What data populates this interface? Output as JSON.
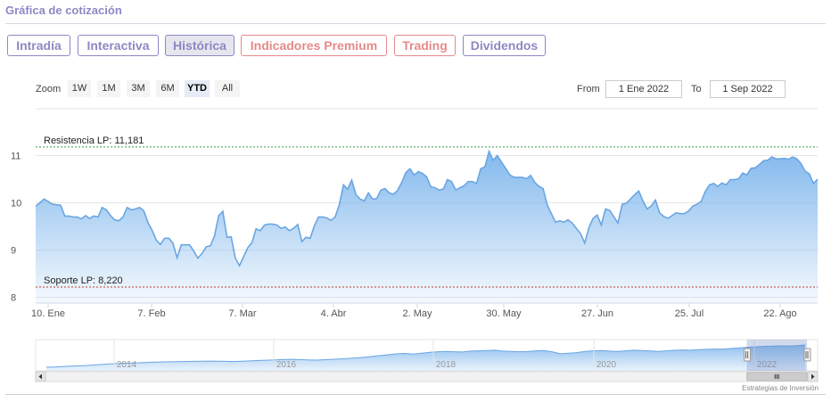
{
  "header": {
    "title": "Gráfica de cotización"
  },
  "tabs": [
    {
      "label": "Intradía",
      "active": false,
      "color": "#8c88c4"
    },
    {
      "label": "Interactiva",
      "active": false,
      "color": "#8c88c4"
    },
    {
      "label": "Histórica",
      "active": true,
      "color": "#8c88c4"
    },
    {
      "label": "Indicadores Premium",
      "active": false,
      "color": "#e58a8a"
    },
    {
      "label": "Trading",
      "active": false,
      "color": "#e58a8a"
    },
    {
      "label": "Dividendos",
      "active": false,
      "color": "#8c88c4"
    }
  ],
  "range_selector": {
    "zoom_label": "Zoom",
    "buttons": [
      "1W",
      "1M",
      "3M",
      "6M",
      "YTD",
      "All"
    ],
    "selected": "YTD",
    "from_label": "From",
    "from_value": "1 Ene 2022",
    "to_label": "To",
    "to_value": "1 Sep 2022"
  },
  "chart_data": {
    "type": "area",
    "series": [
      {
        "values": [
          9.93,
          10.0,
          10.08,
          10.03,
          9.97,
          9.96,
          9.95,
          9.72,
          9.72,
          9.7,
          9.7,
          9.66,
          9.73,
          9.67,
          9.72,
          9.7,
          9.9,
          9.85,
          9.73,
          9.64,
          9.62,
          9.7,
          9.9,
          9.85,
          9.87,
          9.9,
          9.83,
          9.58,
          9.42,
          9.21,
          9.12,
          9.25,
          9.25,
          9.15,
          8.84,
          9.11,
          9.11,
          9.11,
          8.98,
          8.83,
          8.93,
          9.07,
          9.09,
          9.3,
          9.73,
          9.82,
          9.27,
          9.28,
          8.83,
          8.67,
          8.86,
          9.05,
          9.16,
          9.45,
          9.41,
          9.53,
          9.55,
          9.55,
          9.53,
          9.46,
          9.49,
          9.41,
          9.46,
          9.54,
          9.18,
          9.27,
          9.25,
          9.51,
          9.7,
          9.7,
          9.68,
          9.63,
          9.7,
          9.96,
          10.38,
          10.29,
          10.48,
          10.17,
          10.08,
          10.04,
          10.21,
          10.08,
          10.09,
          10.27,
          10.3,
          10.21,
          10.18,
          10.26,
          10.43,
          10.64,
          10.72,
          10.59,
          10.66,
          10.62,
          10.55,
          10.34,
          10.32,
          10.27,
          10.29,
          10.49,
          10.45,
          10.27,
          10.32,
          10.36,
          10.45,
          10.45,
          10.41,
          10.72,
          10.76,
          11.09,
          10.9,
          11.0,
          10.86,
          10.73,
          10.59,
          10.54,
          10.54,
          10.54,
          10.51,
          10.58,
          10.43,
          10.35,
          10.3,
          9.95,
          9.77,
          9.59,
          9.62,
          9.59,
          9.64,
          9.57,
          9.46,
          9.35,
          9.15,
          9.47,
          9.67,
          9.74,
          9.53,
          9.87,
          9.84,
          9.71,
          9.57,
          9.97,
          9.99,
          10.08,
          10.17,
          10.25,
          10.04,
          9.87,
          9.93,
          10.06,
          9.79,
          9.71,
          9.67,
          9.73,
          9.79,
          9.77,
          9.77,
          9.83,
          9.93,
          9.97,
          10.03,
          10.24,
          10.38,
          10.41,
          10.35,
          10.42,
          10.38,
          10.49,
          10.49,
          10.51,
          10.63,
          10.59,
          10.73,
          10.74,
          10.81,
          10.89,
          10.9,
          10.97,
          10.93,
          10.93,
          10.94,
          10.92,
          10.97,
          10.93,
          10.83,
          10.67,
          10.61,
          10.41,
          10.5
        ]
      }
    ],
    "x_tick_labels": [
      "10. Ene",
      "7. Feb",
      "7. Mar",
      "4. Abr",
      "2. May",
      "30. May",
      "27. Jun",
      "25. Jul",
      "22. Ago"
    ],
    "y_tick_labels": [
      "8",
      "9",
      "10",
      "11"
    ],
    "ylim": [
      7.88,
      11.65
    ],
    "lines": [
      {
        "label": "Resistencia LP: 11,181",
        "value": 11.181,
        "color": "#3a9a4a"
      },
      {
        "label": "Soporte LP: 8,220",
        "value": 8.22,
        "color": "#c0392b"
      }
    ],
    "area_color": "#7cb5ec",
    "line_color": "#6aa6e3",
    "grid": true,
    "navigator": {
      "year_labels": [
        "2014",
        "2016",
        "2018",
        "2020",
        "2022"
      ],
      "values": [
        8.2,
        8.25,
        8.3,
        8.4,
        8.45,
        8.5,
        8.6,
        8.7,
        8.8,
        8.85,
        8.9,
        8.95,
        9.0,
        9.05,
        9.1,
        9.12,
        9.15,
        9.18,
        9.2,
        9.22,
        9.25,
        9.23,
        9.2,
        9.18,
        9.22,
        9.28,
        9.35,
        9.4,
        9.45,
        9.5,
        9.55,
        9.5,
        9.45,
        9.42,
        9.48,
        9.55,
        9.62,
        9.7,
        9.8,
        9.9,
        10.05,
        10.2,
        10.35,
        10.5,
        10.55,
        10.45,
        10.6,
        10.75,
        10.85,
        10.9,
        10.85,
        10.8,
        10.95,
        11.0,
        11.05,
        11.1,
        10.95,
        10.9,
        10.85,
        10.9,
        11.0,
        11.05,
        10.85,
        10.5,
        10.6,
        10.7,
        10.9,
        11.0,
        11.05,
        10.95,
        10.9,
        11.0,
        11.1,
        11.05,
        11.0,
        10.9,
        11.0,
        11.1,
        11.15,
        11.1,
        11.2,
        11.25,
        11.3,
        11.3,
        11.4,
        11.5,
        11.6,
        11.7,
        11.75,
        11.8,
        11.85,
        11.8,
        11.9,
        12.0
      ],
      "selection": [
        0.93,
        1.0
      ]
    }
  },
  "footer": {
    "credit": "Estrategias de Inversión"
  }
}
